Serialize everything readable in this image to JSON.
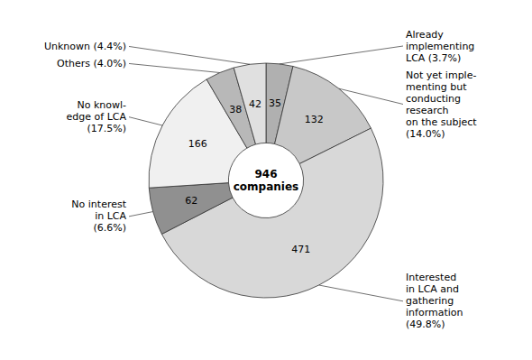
{
  "chart_data": {
    "type": "donut",
    "categories": [
      "Already\nimplementing\nLCA (3.7%)",
      "Not yet imple-\nmenting but\nconducting\nresearch\non the subject\n(14.0%)",
      "Interested\nin LCA and\ngathering\ninformation\n(49.8%)",
      "No interest\nin LCA\n(6.6%)",
      "No knowl-\nedge of LCA\n(17.5%)",
      "Others (4.0%)",
      "Unknown (4.4%)"
    ],
    "values": [
      35,
      132,
      471,
      62,
      166,
      38,
      42
    ],
    "colors": [
      "#b0b0b0",
      "#c8c8c8",
      "#d8d8d8",
      "#909090",
      "#f0f0f0",
      "#b8b8b8",
      "#e0e0e0"
    ],
    "data_labels": true,
    "annotations": [
      "946\ncompanies"
    ]
  }
}
